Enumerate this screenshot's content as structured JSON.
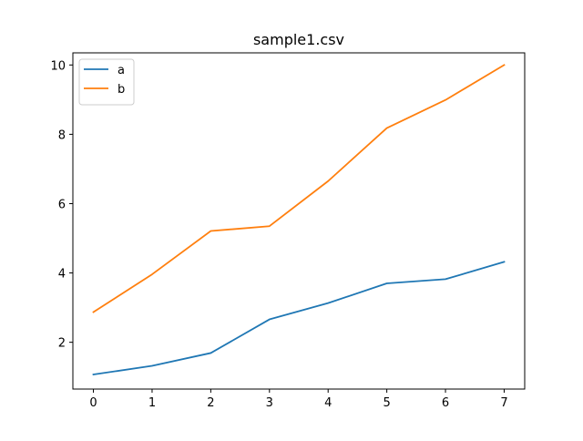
{
  "chart_data": {
    "type": "line",
    "title": "sample1.csv",
    "xlabel": "",
    "ylabel": "",
    "x": [
      0,
      1,
      2,
      3,
      4,
      5,
      6,
      7
    ],
    "xlim": [
      -0.35,
      7.35
    ],
    "ylim": [
      0.65,
      10.35
    ],
    "xticks": [
      0,
      1,
      2,
      3,
      4,
      5,
      6,
      7
    ],
    "yticks": [
      2,
      4,
      6,
      8,
      10
    ],
    "grid": false,
    "legend_position": "top-left",
    "series": [
      {
        "name": "a",
        "color": "#1f77b4",
        "values": [
          1.07,
          1.32,
          1.69,
          2.66,
          3.13,
          3.7,
          3.82,
          4.32
        ]
      },
      {
        "name": "b",
        "color": "#ff7f0e",
        "values": [
          2.87,
          3.96,
          5.21,
          5.35,
          6.65,
          8.18,
          8.99,
          10.0
        ]
      }
    ]
  }
}
